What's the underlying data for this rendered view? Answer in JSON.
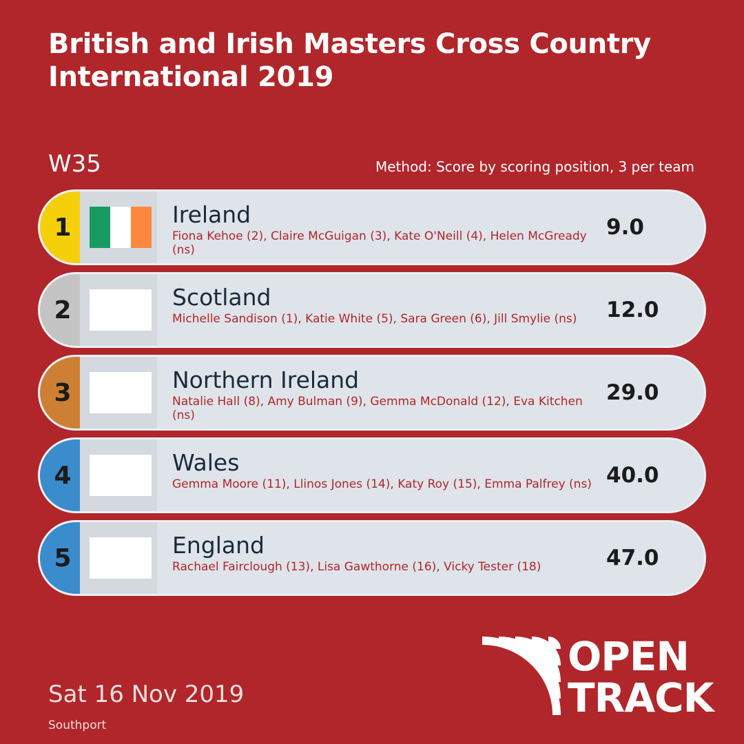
{
  "title": "British and Irish Masters Cross Country International 2019",
  "category": "W35",
  "method": "Method: Score by scoring position, 3 per team",
  "results": [
    {
      "rank": "1",
      "team": "Ireland",
      "athletes": "Fiona Kehoe (2), Claire McGuigan (3), Kate O'Neill (4), Helen McGready (ns)",
      "score": "9.0",
      "rank_color": "#f5cf0a",
      "flag": [
        "#169b62",
        "#ffffff",
        "#ff883e"
      ]
    },
    {
      "rank": "2",
      "team": "Scotland",
      "athletes": "Michelle Sandison (1), Katie White (5), Sara Green (6), Jill Smylie (ns)",
      "score": "12.0",
      "rank_color": "#c4c4c4",
      "flag": []
    },
    {
      "rank": "3",
      "team": "Northern Ireland",
      "athletes": "Natalie Hall (8), Amy Bulman (9), Gemma McDonald (12), Eva Kitchen (ns)",
      "score": "29.0",
      "rank_color": "#cd8034",
      "flag": []
    },
    {
      "rank": "4",
      "team": "Wales",
      "athletes": "Gemma Moore (11), Llinos Jones (14), Katy Roy (15), Emma Palfrey (ns)",
      "score": "40.0",
      "rank_color": "#3a8ccc",
      "flag": []
    },
    {
      "rank": "5",
      "team": "England",
      "athletes": "Rachael Fairclough (13), Lisa Gawthorne (16), Vicky Tester (18)",
      "score": "47.0",
      "rank_color": "#3a8ccc",
      "flag": []
    }
  ],
  "date": "Sat 16 Nov 2019",
  "venue": "Southport",
  "logo": {
    "line1": "OPEN",
    "line2": "TRACK"
  }
}
